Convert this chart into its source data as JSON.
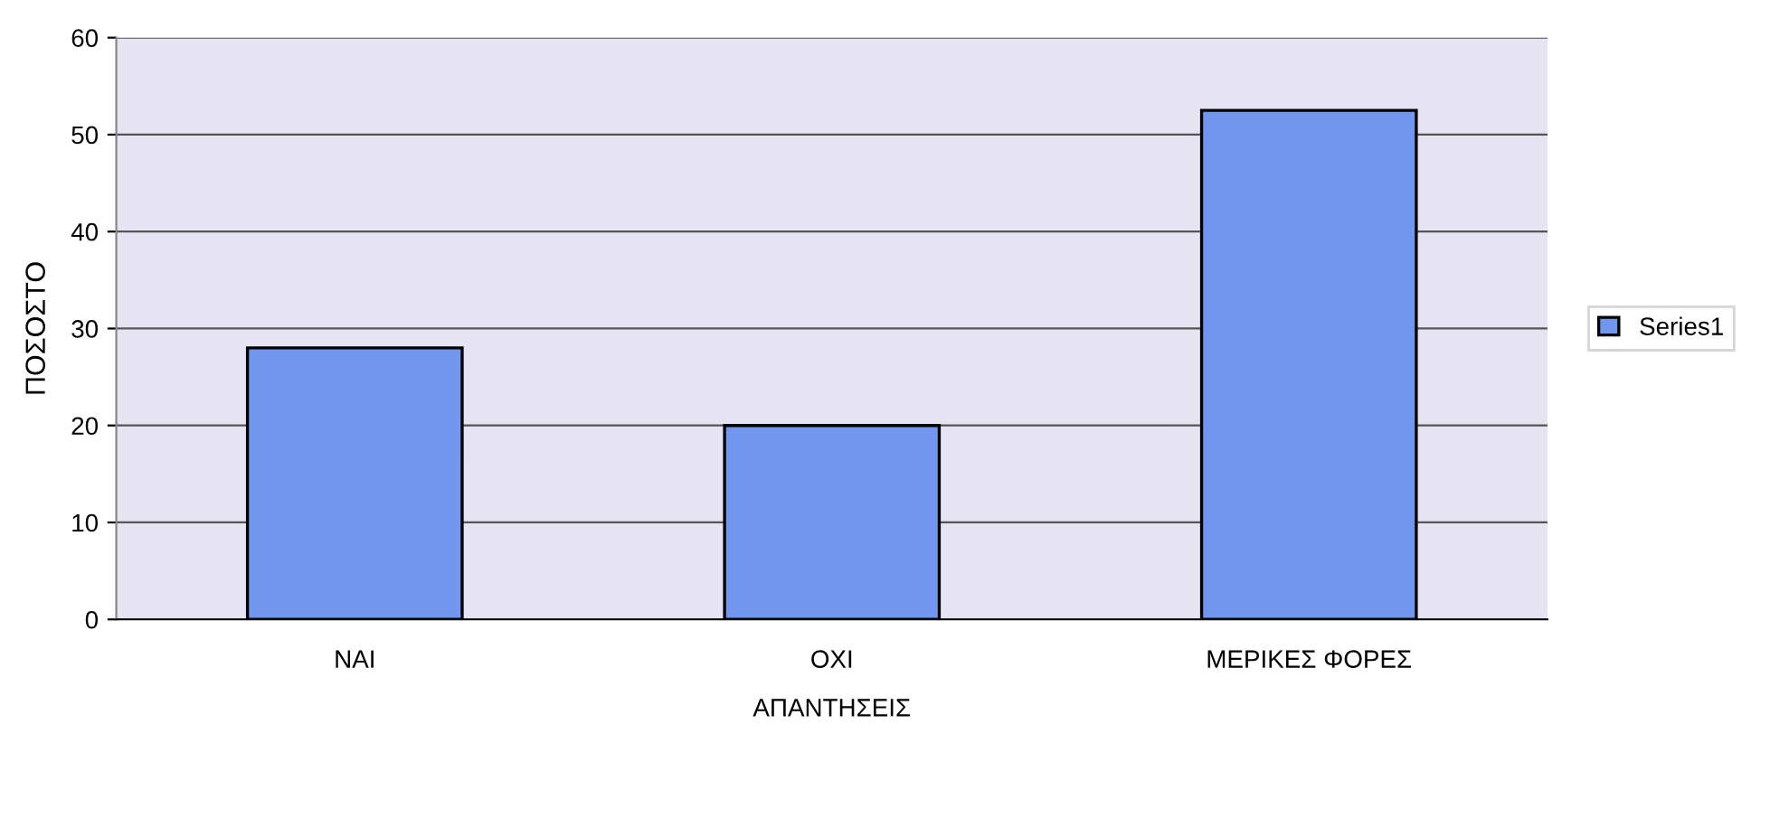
{
  "chart_data": {
    "type": "bar",
    "xlabel": "ΑΠΑΝΤΗΣΕΙΣ",
    "ylabel": "ΠΟΣΟΣΤΟ",
    "categories": [
      "ΝΑΙ",
      "ΟΧΙ",
      "ΜΕΡΙΚΕΣ ΦΟΡΕΣ"
    ],
    "series": [
      {
        "name": "Series1",
        "color": "#7096ee",
        "values": [
          28,
          20,
          52.5
        ]
      }
    ],
    "ylim": [
      0,
      60
    ],
    "yticks": [
      0,
      10,
      20,
      30,
      40,
      50,
      60
    ],
    "grid": "y",
    "legend": "right"
  }
}
